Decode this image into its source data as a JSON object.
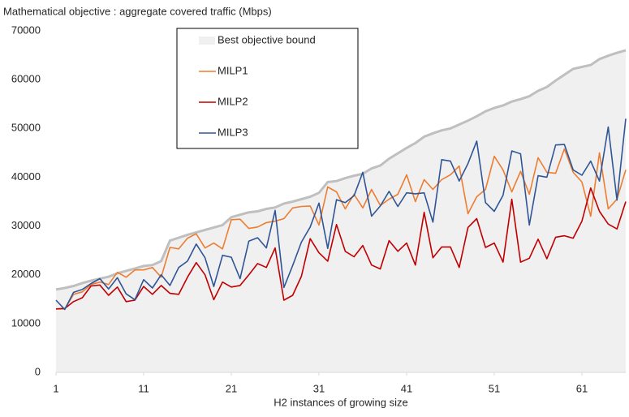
{
  "chart_data": {
    "type": "line",
    "title": "Mathematical objective : aggregate covered traffic (Mbps)",
    "x_label": "H2 instances of growing size",
    "x": [
      1,
      2,
      3,
      4,
      5,
      6,
      7,
      8,
      9,
      10,
      11,
      12,
      13,
      14,
      15,
      16,
      17,
      18,
      19,
      20,
      21,
      22,
      23,
      24,
      25,
      26,
      27,
      28,
      29,
      30,
      31,
      32,
      33,
      34,
      35,
      36,
      37,
      38,
      39,
      40,
      41,
      42,
      43,
      44,
      45,
      46,
      47,
      48,
      49,
      50,
      51,
      52,
      53,
      54,
      55,
      56,
      57,
      58,
      59,
      60,
      61,
      62,
      63,
      64,
      65,
      66
    ],
    "xlim": [
      1,
      66
    ],
    "xticks": [
      1,
      11,
      21,
      31,
      41,
      51,
      61
    ],
    "ylim": [
      0,
      70000
    ],
    "yticks": [
      0,
      10000,
      20000,
      30000,
      40000,
      50000,
      60000,
      70000
    ],
    "grid": false,
    "legend": "top-left",
    "series": [
      {
        "name": "Best objective bound",
        "style": "area",
        "color": "#bfbfbf",
        "fill": "#f0f0f0",
        "values": [
          17000,
          17300,
          17700,
          18300,
          18800,
          19200,
          19600,
          20300,
          20800,
          21300,
          21800,
          22000,
          22800,
          27000,
          27600,
          28200,
          28700,
          29200,
          29700,
          30200,
          31800,
          32300,
          32800,
          33000,
          33500,
          33800,
          34600,
          35000,
          35500,
          36000,
          36800,
          39000,
          39200,
          39800,
          40300,
          40700,
          41800,
          42400,
          43800,
          44900,
          46000,
          47000,
          48300,
          49000,
          49600,
          50000,
          50800,
          51600,
          52500,
          53500,
          54200,
          54700,
          55500,
          56000,
          56600,
          57700,
          58500,
          59800,
          61000,
          62200,
          62600,
          63000,
          64200,
          64900,
          65500,
          66000
        ]
      },
      {
        "name": "MILP1",
        "style": "line",
        "color": "#ed7d31",
        "values": [
          13000,
          13000,
          16000,
          16500,
          18000,
          18500,
          18000,
          20500,
          19500,
          21000,
          21000,
          21500,
          19500,
          25600,
          25300,
          27500,
          28400,
          25500,
          26500,
          25300,
          31300,
          31400,
          29500,
          29800,
          30700,
          31000,
          31500,
          33700,
          34000,
          34100,
          30200,
          38000,
          37000,
          33500,
          36500,
          33700,
          37500,
          34200,
          35500,
          36500,
          40500,
          35000,
          39500,
          37500,
          39500,
          40500,
          42300,
          32500,
          36000,
          37500,
          44300,
          41500,
          37000,
          41200,
          36500,
          44000,
          41000,
          40800,
          45800,
          41000,
          39000,
          32000,
          45000,
          33500,
          35500,
          41500
        ]
      },
      {
        "name": "MILP2",
        "style": "line",
        "color": "#c00000",
        "values": [
          13000,
          13100,
          14500,
          15300,
          17700,
          17900,
          15800,
          17500,
          14500,
          14800,
          17600,
          16000,
          17800,
          16200,
          16000,
          19500,
          22500,
          20000,
          14900,
          18500,
          17500,
          17800,
          20000,
          22300,
          21500,
          25500,
          14800,
          15800,
          19700,
          27400,
          24500,
          22800,
          30300,
          24800,
          23700,
          26000,
          22000,
          21200,
          27000,
          24800,
          26500,
          22000,
          32800,
          23500,
          25700,
          25700,
          21500,
          29700,
          31500,
          25600,
          26500,
          22600,
          35500,
          22600,
          23400,
          27300,
          23300,
          27700,
          28000,
          27500,
          31000,
          37800,
          33000,
          30400,
          29400,
          35000
        ]
      },
      {
        "name": "MILP3",
        "style": "line",
        "color": "#2f5597",
        "values": [
          14800,
          12900,
          16400,
          17000,
          18200,
          19200,
          17100,
          19400,
          16100,
          14900,
          19000,
          17300,
          20000,
          17800,
          21500,
          22800,
          26300,
          23500,
          17600,
          24000,
          23600,
          19200,
          26900,
          27600,
          25500,
          33200,
          17400,
          21900,
          26700,
          29800,
          34700,
          25400,
          35400,
          34800,
          36200,
          41000,
          32000,
          34100,
          37100,
          34000,
          36800,
          36600,
          36800,
          30800,
          43600,
          43300,
          39200,
          42800,
          47400,
          34800,
          33000,
          36300,
          45400,
          44800,
          30200,
          40300,
          40000,
          46600,
          46700,
          41500,
          40400,
          43300,
          39200,
          50300,
          35300,
          52000
        ]
      }
    ]
  }
}
